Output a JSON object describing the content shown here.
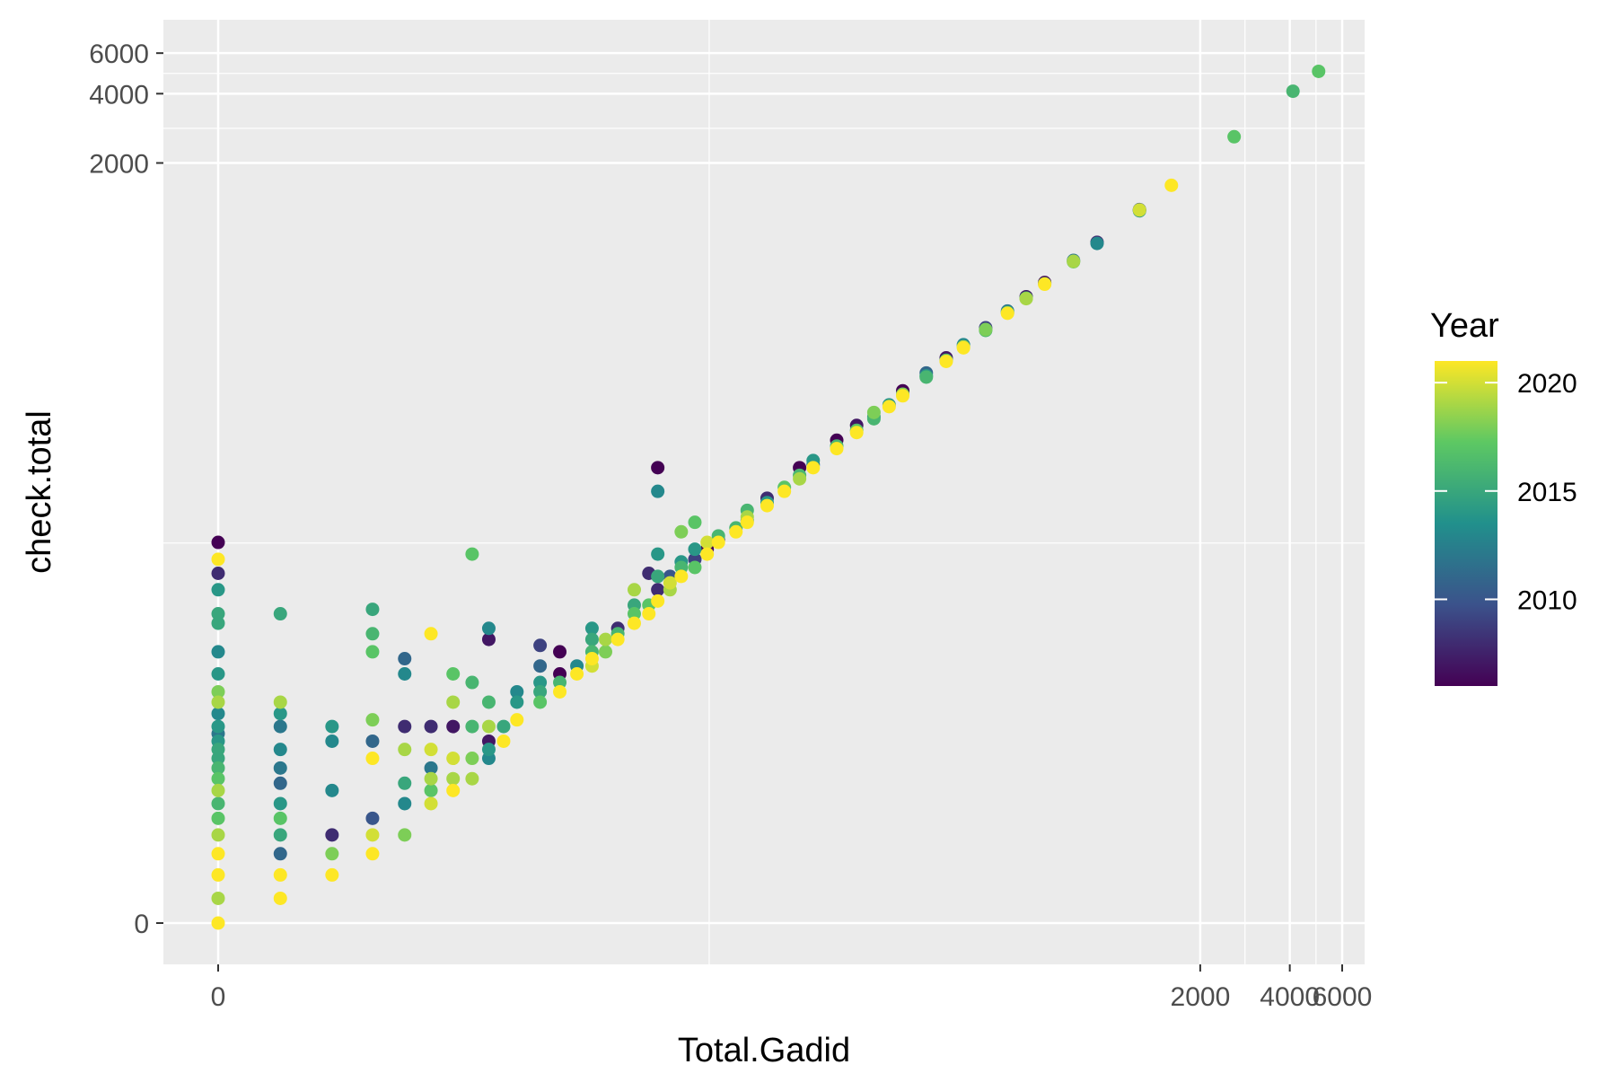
{
  "chart_data": {
    "type": "scatter",
    "title": "",
    "xlabel": "Total.Gadid",
    "ylabel": "check.total",
    "x_scale": "pseudo-log (asinh)",
    "y_scale": "pseudo-log (asinh)",
    "x_ticks": [
      0,
      2000,
      4000,
      6000
    ],
    "y_ticks": [
      0,
      2000,
      4000,
      6000
    ],
    "x_tick_labels": [
      "0",
      "2000",
      "4000",
      "6000"
    ],
    "y_tick_labels": [
      "0",
      "2000",
      "4000",
      "6000"
    ],
    "xlim": [
      0,
      6000
    ],
    "ylim": [
      0,
      7000
    ],
    "grid": true,
    "panel_background": "#ebebeb",
    "legend": {
      "title": "Year",
      "type": "colorbar",
      "position": "right",
      "range": [
        2006,
        2021
      ],
      "breaks": [
        2010,
        2015,
        2020
      ],
      "break_labels": [
        "2010",
        "2015",
        "2020"
      ],
      "palette": [
        "#440154",
        "#3b528b",
        "#21908c",
        "#5dc863",
        "#fde725"
      ]
    },
    "points": [
      [
        0,
        0,
        2021
      ],
      [
        0,
        0.5,
        2019
      ],
      [
        0,
        1,
        2021
      ],
      [
        0,
        1.5,
        2021
      ],
      [
        0,
        2,
        2019
      ],
      [
        0,
        2.5,
        2017
      ],
      [
        0,
        3,
        2016
      ],
      [
        0,
        3.5,
        2019
      ],
      [
        0,
        4,
        2017
      ],
      [
        0,
        4.5,
        2016
      ],
      [
        0,
        5,
        2015
      ],
      [
        0,
        5.5,
        2015
      ],
      [
        0,
        6,
        2014
      ],
      [
        0,
        6.5,
        2012
      ],
      [
        0,
        7,
        2014
      ],
      [
        0,
        8,
        2013
      ],
      [
        0,
        9,
        2019
      ],
      [
        0,
        10,
        2018
      ],
      [
        0,
        12,
        2014
      ],
      [
        0,
        15,
        2013
      ],
      [
        0,
        20,
        2015
      ],
      [
        0,
        22,
        2015
      ],
      [
        0,
        28,
        2014
      ],
      [
        0,
        33,
        2008
      ],
      [
        0,
        38,
        2021
      ],
      [
        0,
        45,
        2006
      ],
      [
        1,
        0.5,
        2021
      ],
      [
        1,
        1,
        2021
      ],
      [
        1,
        1.5,
        2011
      ],
      [
        1,
        2,
        2015
      ],
      [
        1,
        2.5,
        2017
      ],
      [
        1,
        3,
        2014
      ],
      [
        1,
        3.8,
        2011
      ],
      [
        1,
        4.5,
        2012
      ],
      [
        1,
        5.5,
        2013
      ],
      [
        1,
        7,
        2012
      ],
      [
        1,
        8,
        2014
      ],
      [
        1,
        9,
        2019
      ],
      [
        1,
        22,
        2015
      ],
      [
        2,
        1,
        2021
      ],
      [
        2,
        1.5,
        2018
      ],
      [
        2,
        2,
        2008
      ],
      [
        2,
        3.5,
        2013
      ],
      [
        2,
        6,
        2013
      ],
      [
        2,
        7,
        2014
      ],
      [
        3,
        1.5,
        2021
      ],
      [
        3,
        2,
        2020
      ],
      [
        3,
        2.5,
        2010
      ],
      [
        3,
        5,
        2021
      ],
      [
        3,
        6,
        2011
      ],
      [
        3,
        7.5,
        2018
      ],
      [
        3,
        15,
        2017
      ],
      [
        3,
        18,
        2016
      ],
      [
        3,
        23,
        2015
      ],
      [
        4,
        2,
        2018
      ],
      [
        4,
        3,
        2013
      ],
      [
        4,
        3.8,
        2015
      ],
      [
        4,
        5.5,
        2019
      ],
      [
        4,
        7,
        2008
      ],
      [
        4,
        12,
        2013
      ],
      [
        4,
        14,
        2011
      ],
      [
        5,
        3,
        2020
      ],
      [
        5,
        3.5,
        2017
      ],
      [
        5,
        4,
        2019
      ],
      [
        5,
        4.5,
        2012
      ],
      [
        5,
        5.5,
        2020
      ],
      [
        5,
        7,
        2008
      ],
      [
        5,
        18,
        2021
      ],
      [
        6,
        3.5,
        2021
      ],
      [
        6,
        4,
        2019
      ],
      [
        6,
        5,
        2020
      ],
      [
        6,
        7,
        2007
      ],
      [
        6,
        9,
        2019
      ],
      [
        6,
        12,
        2017
      ],
      [
        7,
        4,
        2019
      ],
      [
        7,
        5,
        2018
      ],
      [
        7,
        7,
        2016
      ],
      [
        7,
        11,
        2016
      ],
      [
        7,
        40,
        2017
      ],
      [
        8,
        5,
        2013
      ],
      [
        8,
        5.5,
        2014
      ],
      [
        8,
        6,
        2007
      ],
      [
        8,
        7,
        2019
      ],
      [
        8,
        9,
        2016
      ],
      [
        8,
        17,
        2007
      ],
      [
        8,
        19,
        2013
      ],
      [
        9,
        6,
        2021
      ],
      [
        9,
        7,
        2015
      ],
      [
        10,
        7.5,
        2021
      ],
      [
        10,
        9,
        2014
      ],
      [
        10,
        10,
        2013
      ],
      [
        12,
        9,
        2017
      ],
      [
        12,
        10,
        2015
      ],
      [
        12,
        11,
        2014
      ],
      [
        12,
        13,
        2011
      ],
      [
        12,
        16,
        2009
      ],
      [
        14,
        10,
        2021
      ],
      [
        14,
        11,
        2016
      ],
      [
        14,
        12,
        2006
      ],
      [
        14,
        15,
        2006
      ],
      [
        16,
        12,
        2021
      ],
      [
        16,
        13,
        2013
      ],
      [
        18,
        13,
        2020
      ],
      [
        18,
        14,
        2021
      ],
      [
        18,
        15,
        2016
      ],
      [
        18,
        17,
        2015
      ],
      [
        18,
        19,
        2014
      ],
      [
        20,
        15,
        2018
      ],
      [
        20,
        17,
        2019
      ],
      [
        22,
        17,
        2021
      ],
      [
        22,
        18,
        2016
      ],
      [
        22,
        19,
        2008
      ],
      [
        25,
        20,
        2021
      ],
      [
        25,
        22,
        2017
      ],
      [
        25,
        24,
        2015
      ],
      [
        25,
        28,
        2019
      ],
      [
        28,
        22,
        2021
      ],
      [
        28,
        24,
        2017
      ],
      [
        28,
        33,
        2008
      ],
      [
        30,
        25,
        2021
      ],
      [
        30,
        28,
        2008
      ],
      [
        30,
        32,
        2015
      ],
      [
        30,
        40,
        2014
      ],
      [
        30,
        95,
        2006
      ],
      [
        30,
        75,
        2013
      ],
      [
        33,
        28,
        2019
      ],
      [
        33,
        30,
        2020
      ],
      [
        33,
        32,
        2010
      ],
      [
        36,
        32,
        2021
      ],
      [
        36,
        35,
        2016
      ],
      [
        36,
        37,
        2014
      ],
      [
        36,
        50,
        2018
      ],
      [
        40,
        35,
        2017
      ],
      [
        40,
        38,
        2009
      ],
      [
        40,
        42,
        2014
      ],
      [
        40,
        55,
        2017
      ],
      [
        44,
        40,
        2021
      ],
      [
        44,
        42,
        2006
      ],
      [
        44,
        45,
        2020
      ],
      [
        48,
        45,
        2021
      ],
      [
        48,
        46,
        2008
      ],
      [
        48,
        48,
        2016
      ],
      [
        55,
        50,
        2021
      ],
      [
        55,
        52,
        2016
      ],
      [
        60,
        55,
        2021
      ],
      [
        60,
        56,
        2013
      ],
      [
        60,
        62,
        2016
      ],
      [
        60,
        58,
        2019
      ],
      [
        70,
        65,
        2021
      ],
      [
        70,
        67,
        2014
      ],
      [
        70,
        70,
        2008
      ],
      [
        80,
        75,
        2021
      ],
      [
        80,
        78,
        2017
      ],
      [
        90,
        85,
        2019
      ],
      [
        90,
        88,
        2016
      ],
      [
        90,
        95,
        2006
      ],
      [
        100,
        95,
        2021
      ],
      [
        100,
        98,
        2012
      ],
      [
        100,
        102,
        2014
      ],
      [
        120,
        115,
        2021
      ],
      [
        120,
        118,
        2016
      ],
      [
        120,
        125,
        2006
      ],
      [
        140,
        135,
        2021
      ],
      [
        140,
        138,
        2017
      ],
      [
        140,
        145,
        2007
      ],
      [
        160,
        155,
        2016
      ],
      [
        160,
        158,
        2013
      ],
      [
        160,
        165,
        2018
      ],
      [
        180,
        175,
        2021
      ],
      [
        180,
        178,
        2014
      ],
      [
        200,
        195,
        2021
      ],
      [
        200,
        198,
        2018
      ],
      [
        200,
        205,
        2006
      ],
      [
        240,
        235,
        2016
      ],
      [
        240,
        238,
        2014
      ],
      [
        240,
        245,
        2011
      ],
      [
        280,
        275,
        2021
      ],
      [
        280,
        278,
        2017
      ],
      [
        280,
        285,
        2007
      ],
      [
        320,
        315,
        2021
      ],
      [
        320,
        318,
        2019
      ],
      [
        320,
        325,
        2013
      ],
      [
        380,
        375,
        2016
      ],
      [
        380,
        378,
        2018
      ],
      [
        380,
        385,
        2009
      ],
      [
        450,
        445,
        2021
      ],
      [
        450,
        448,
        2017
      ],
      [
        450,
        455,
        2012
      ],
      [
        520,
        515,
        2019
      ],
      [
        520,
        518,
        2016
      ],
      [
        520,
        525,
        2007
      ],
      [
        600,
        595,
        2021
      ],
      [
        600,
        598,
        2018
      ],
      [
        600,
        605,
        2006
      ],
      [
        750,
        745,
        2017
      ],
      [
        750,
        748,
        2019
      ],
      [
        750,
        755,
        2012
      ],
      [
        900,
        895,
        2013
      ],
      [
        900,
        905,
        2008
      ],
      [
        1250,
        1245,
        2009
      ],
      [
        1250,
        1250,
        2020
      ],
      [
        1250,
        1255,
        2010
      ],
      [
        1250,
        1240,
        2014
      ],
      [
        1600,
        1600,
        2021
      ],
      [
        2600,
        2600,
        2017
      ],
      [
        4100,
        4100,
        2016
      ],
      [
        5000,
        5000,
        2017
      ]
    ]
  }
}
